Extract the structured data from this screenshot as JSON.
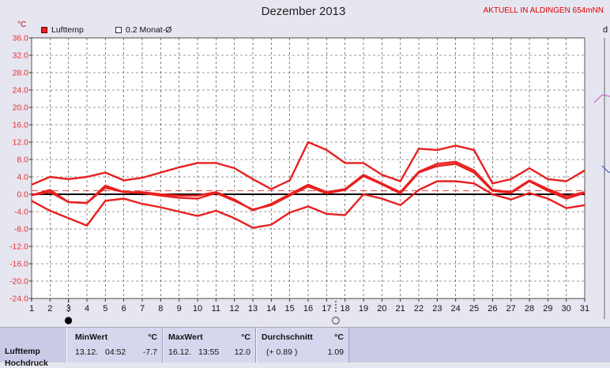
{
  "header": {
    "title": "Dezember 2013",
    "station": "AKTUELL IN ALDINGEN 654mNN",
    "unit": "°C",
    "right_char": "d"
  },
  "legend": {
    "item1": "Lufttemp",
    "item2": "0.2 Monat-Ø"
  },
  "colors": {
    "series": "#e82020",
    "axis": "#000000",
    "reference": "#e83030",
    "grid": "#333333",
    "background": "#e6e6f0",
    "plot_background": "#ffffff"
  },
  "chart_data": {
    "type": "line",
    "title": "Dezember 2013",
    "ylabel": "°C",
    "xlabel": "",
    "ylim": [
      -24,
      36
    ],
    "xlim": [
      1,
      31
    ],
    "grid": true,
    "legend_position": "top-left",
    "x_ticks": [
      1,
      2,
      3,
      4,
      5,
      6,
      7,
      8,
      9,
      10,
      11,
      12,
      13,
      14,
      15,
      16,
      17,
      18,
      19,
      20,
      21,
      22,
      23,
      24,
      25,
      26,
      27,
      28,
      29,
      30,
      31
    ],
    "y_ticks": [
      36.0,
      32.0,
      28.0,
      24.0,
      20.0,
      16.0,
      12.0,
      8.0,
      4.0,
      0.0,
      -4.0,
      -8.0,
      -12.0,
      -16.0,
      -20.0,
      -24.0
    ],
    "x": [
      1,
      2,
      3,
      4,
      5,
      6,
      7,
      8,
      9,
      10,
      11,
      12,
      13,
      14,
      15,
      16,
      17,
      18,
      19,
      20,
      21,
      22,
      23,
      24,
      25,
      26,
      27,
      28,
      29,
      30,
      31
    ],
    "series": [
      {
        "values": [
          2.2,
          4.0,
          3.5,
          4.0,
          5.0,
          3.2,
          3.8,
          5.0,
          6.2,
          7.2,
          7.2,
          6.0,
          3.5,
          1.2,
          3.2,
          12.0,
          10.2,
          7.2,
          7.2,
          4.5,
          3.0,
          10.5,
          10.2,
          11.2,
          10.2,
          2.5,
          3.5,
          6.0,
          3.5,
          3.0,
          5.5
        ]
      },
      {
        "values": [
          -0.2,
          1.0,
          -1.8,
          -2.0,
          2.0,
          0.5,
          0.5,
          0.0,
          -0.3,
          -0.3,
          0.5,
          -1.2,
          -3.7,
          -2.2,
          0.0,
          2.2,
          0.5,
          1.2,
          4.5,
          2.5,
          0.5,
          5.2,
          7.0,
          7.5,
          5.5,
          1.0,
          0.5,
          3.2,
          1.2,
          -0.5,
          0.5
        ]
      },
      {
        "values": [
          -1.5,
          -3.8,
          -5.5,
          -7.2,
          -1.5,
          -1.0,
          -2.2,
          -3.0,
          -4.0,
          -5.0,
          -3.8,
          -5.5,
          -7.7,
          -7.0,
          -4.2,
          -2.8,
          -4.5,
          -4.8,
          0.0,
          -1.0,
          -2.5,
          1.0,
          3.0,
          3.0,
          2.5,
          0.0,
          -1.2,
          0.3,
          -1.0,
          -3.2,
          -2.5
        ]
      },
      {
        "values": [
          -0.2,
          0.5,
          -1.8,
          -2.0,
          1.5,
          0.5,
          0.3,
          -0.3,
          -0.8,
          -1.0,
          0.3,
          -1.5,
          -3.5,
          -2.5,
          -0.3,
          1.8,
          0.2,
          1.0,
          4.2,
          2.3,
          0.2,
          5.0,
          6.5,
          7.0,
          5.0,
          0.8,
          0.3,
          3.0,
          0.8,
          -1.0,
          0.3
        ]
      }
    ],
    "reference_line": 0.8,
    "annotations": [
      "●",
      "○"
    ],
    "annotation_positions_x": [
      3,
      17.5
    ]
  },
  "stats": {
    "row_label": "Lufttemp",
    "row_label_2": "Hochdruck",
    "min": {
      "header": "MinWert",
      "unit": "°C",
      "date": "13.12.",
      "time": "04:52",
      "value": "-7.7"
    },
    "max": {
      "header": "MaxWert",
      "unit": "°C",
      "date": "16.12.",
      "time": "13:55",
      "value": "12.0"
    },
    "avg": {
      "header": "Durchschnitt",
      "unit": "°C",
      "delta": "(+ 0.89 )",
      "value": "1.09"
    }
  }
}
